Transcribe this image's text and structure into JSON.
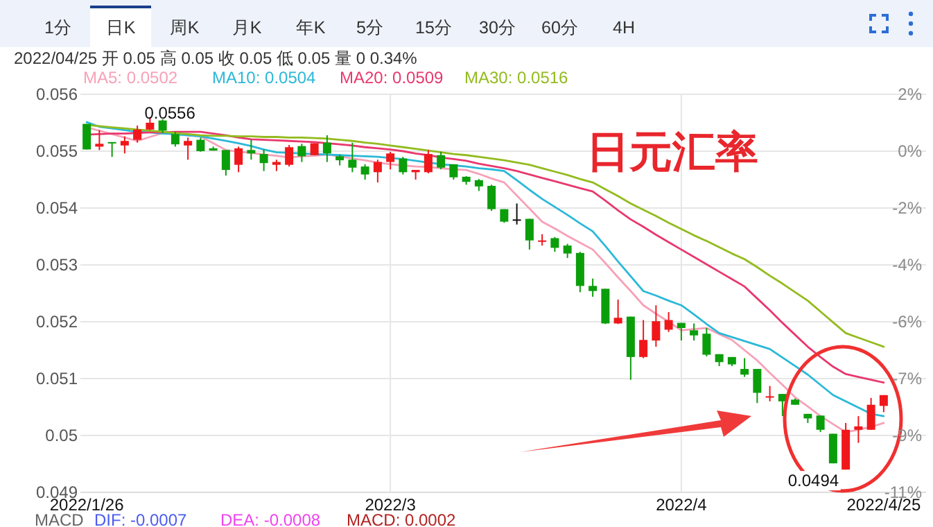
{
  "chart_data": {
    "type": "candlestick",
    "title": "日元汇率",
    "subtitle": "2022/04/25 开 0.05 高 0.05 收 0.05 低 0.05 量 0 0.34%",
    "annotations": [
      "1分",
      "日K",
      "周K",
      "月K",
      "年K",
      "5分",
      "15分",
      "30分",
      "60分",
      "4H",
      "0.0556",
      "0.0494",
      "MACD",
      "DIF: -0.0007",
      "DEA: -0.0008",
      "MACD: 0.0002"
    ],
    "categories": [
      "2022/1/26",
      null,
      null,
      null,
      null,
      null,
      null,
      null,
      null,
      null,
      null,
      null,
      null,
      null,
      null,
      null,
      null,
      null,
      null,
      null,
      null,
      null,
      null,
      null,
      "2022/3",
      null,
      null,
      null,
      null,
      null,
      null,
      null,
      null,
      null,
      null,
      null,
      null,
      null,
      null,
      null,
      null,
      null,
      null,
      null,
      null,
      null,
      null,
      "2022/4",
      null,
      null,
      null,
      null,
      null,
      null,
      null,
      null,
      null,
      null,
      null,
      null,
      null,
      null,
      null,
      "2022/4/25"
    ],
    "ohlc": [
      [
        0.05548,
        0.05548,
        0.05503,
        0.05503
      ],
      [
        0.05508,
        0.05537,
        0.05502,
        0.05513
      ],
      [
        0.05516,
        0.05516,
        0.0549,
        0.05515
      ],
      [
        0.0551,
        0.05526,
        0.05496,
        0.05518
      ],
      [
        0.0552,
        0.05545,
        0.05515,
        0.05538
      ],
      [
        0.05538,
        0.0556,
        0.05537,
        0.0555
      ],
      [
        0.05554,
        0.05556,
        0.05532,
        0.05536
      ],
      [
        0.0553,
        0.05534,
        0.05508,
        0.05512
      ],
      [
        0.0551,
        0.05524,
        0.05485,
        0.05518
      ],
      [
        0.0552,
        0.05524,
        0.05499,
        0.055
      ],
      [
        0.05505,
        0.05508,
        0.05501,
        0.05501
      ],
      [
        0.05502,
        0.05502,
        0.05457,
        0.05467
      ],
      [
        0.05476,
        0.05508,
        0.05463,
        0.05505
      ],
      [
        0.05502,
        0.0552,
        0.05485,
        0.05496
      ],
      [
        0.05495,
        0.05503,
        0.05465,
        0.05479
      ],
      [
        0.05476,
        0.05485,
        0.05465,
        0.05481
      ],
      [
        0.05476,
        0.05511,
        0.05473,
        0.05507
      ],
      [
        0.05509,
        0.05513,
        0.05481,
        0.05491
      ],
      [
        0.05493,
        0.05514,
        0.05493,
        0.05514
      ],
      [
        0.05515,
        0.05528,
        0.05481,
        0.05496
      ],
      [
        0.05491,
        0.05494,
        0.05475,
        0.05484
      ],
      [
        0.05485,
        0.05515,
        0.05463,
        0.05471
      ],
      [
        0.05473,
        0.05477,
        0.0545,
        0.05459
      ],
      [
        0.05463,
        0.05485,
        0.05445,
        0.05481
      ],
      [
        0.05481,
        0.05499,
        0.05468,
        0.05496
      ],
      [
        0.05487,
        0.0549,
        0.05459,
        0.05463
      ],
      [
        0.05463,
        0.05467,
        0.0545,
        0.05467
      ],
      [
        0.05463,
        0.05502,
        0.05461,
        0.05495
      ],
      [
        0.05493,
        0.05499,
        0.05468,
        0.05471
      ],
      [
        0.05477,
        0.05477,
        0.0545,
        0.05454
      ],
      [
        0.05455,
        0.05456,
        0.05441,
        0.05446
      ],
      [
        0.05449,
        0.05451,
        0.0543,
        0.05438
      ],
      [
        0.05439,
        0.05441,
        0.05395,
        0.05398
      ],
      [
        0.05398,
        0.05398,
        0.05374,
        0.05376
      ],
      [
        0.0538,
        0.05408,
        0.05371,
        0.0538
      ],
      [
        0.05381,
        0.05381,
        0.05327,
        0.05343
      ],
      [
        0.05342,
        0.05354,
        0.05334,
        0.05343
      ],
      [
        0.05347,
        0.05349,
        0.05323,
        0.0533
      ],
      [
        0.05334,
        0.05337,
        0.05312,
        0.0532
      ],
      [
        0.05321,
        0.05323,
        0.05252,
        0.05263
      ],
      [
        0.05263,
        0.05276,
        0.05244,
        0.05254
      ],
      [
        0.05258,
        0.05258,
        0.05196,
        0.05197
      ],
      [
        0.05197,
        0.05239,
        0.05196,
        0.05207
      ],
      [
        0.05209,
        0.05209,
        0.05098,
        0.05138
      ],
      [
        0.05138,
        0.05203,
        0.05136,
        0.05168
      ],
      [
        0.05167,
        0.05229,
        0.05156,
        0.05201
      ],
      [
        0.05186,
        0.05217,
        0.05182,
        0.05203
      ],
      [
        0.05198,
        0.05198,
        0.05167,
        0.05189
      ],
      [
        0.05185,
        0.05197,
        0.05167,
        0.05176
      ],
      [
        0.05179,
        0.05189,
        0.05139,
        0.05142
      ],
      [
        0.05143,
        0.05143,
        0.05122,
        0.05129
      ],
      [
        0.05138,
        0.05138,
        0.05122,
        0.05125
      ],
      [
        0.05117,
        0.05136,
        0.05103,
        0.05107
      ],
      [
        0.05117,
        0.05117,
        0.05057,
        0.05075
      ],
      [
        0.05068,
        0.05087,
        0.0506,
        0.05069
      ],
      [
        0.05073,
        0.05073,
        0.05034,
        0.0506
      ],
      [
        0.05063,
        0.05065,
        0.05054,
        0.05054
      ],
      [
        0.05038,
        0.05038,
        0.05022,
        0.0503
      ],
      [
        0.05035,
        0.05035,
        0.05006,
        0.0501
      ],
      [
        0.05003,
        0.05003,
        0.04951,
        0.04951
      ],
      [
        0.0494,
        0.05022,
        0.0494,
        0.0501
      ],
      [
        0.0501,
        0.05034,
        0.04987,
        0.05016
      ],
      [
        0.0501,
        0.05066,
        0.0501,
        0.05054
      ],
      [
        0.05052,
        0.05071,
        0.05041,
        0.05071
      ]
    ],
    "series": [
      {
        "name": "MA5: 0.0502",
        "color": "#f7a1b8",
        "type": "line",
        "values": [
          0.05542,
          0.05536,
          0.0553,
          0.05524,
          0.05518,
          0.05525,
          0.05532,
          0.0553,
          0.05528,
          0.05526,
          0.05514,
          0.05502,
          0.05499,
          0.05497,
          0.05494,
          0.05492,
          0.05489,
          0.05491,
          0.05492,
          0.05494,
          0.05491,
          0.05487,
          0.05484,
          0.0548,
          0.05477,
          0.05475,
          0.05473,
          0.05472,
          0.0547,
          0.05468,
          0.05467,
          0.0546,
          0.05452,
          0.05445,
          0.05422,
          0.05399,
          0.05376,
          0.05364,
          0.05351,
          0.05339,
          0.05327,
          0.05303,
          0.05278,
          0.05254,
          0.05229,
          0.05214,
          0.052,
          0.05185,
          0.05187,
          0.05189,
          0.05178,
          0.05168,
          0.0515,
          0.05132,
          0.0511,
          0.05089,
          0.05067,
          0.05051,
          0.05034,
          0.0502,
          0.05006,
          0.0501,
          0.05015,
          0.05022
        ]
      },
      {
        "name": "MA10: 0.0504",
        "color": "#2bb8d8",
        "type": "line",
        "values": [
          0.05551,
          0.05543,
          0.0554,
          0.05537,
          0.05534,
          0.05533,
          0.05531,
          0.0553,
          0.05528,
          0.05526,
          0.05522,
          0.05518,
          0.05514,
          0.05509,
          0.05503,
          0.05498,
          0.05497,
          0.05496,
          0.05495,
          0.05494,
          0.05493,
          0.05492,
          0.05491,
          0.0549,
          0.05488,
          0.05486,
          0.05483,
          0.0548,
          0.05477,
          0.05475,
          0.05473,
          0.0547,
          0.05468,
          0.05465,
          0.05449,
          0.05432,
          0.05416,
          0.05402,
          0.05388,
          0.05373,
          0.05359,
          0.05333,
          0.05306,
          0.0528,
          0.05254,
          0.05246,
          0.05237,
          0.05229,
          0.05213,
          0.05196,
          0.0518,
          0.05173,
          0.05166,
          0.05159,
          0.05152,
          0.05137,
          0.05122,
          0.05107,
          0.05089,
          0.05071,
          0.0506,
          0.05049,
          0.05038,
          0.05034
        ]
      },
      {
        "name": "MA20: 0.0509",
        "color": "#e8386e",
        "type": "line",
        "values": [
          0.05529,
          0.0553,
          0.05531,
          0.05531,
          0.05532,
          0.05533,
          0.05533,
          0.05534,
          0.05534,
          0.05534,
          0.05531,
          0.05528,
          0.05524,
          0.05521,
          0.0552,
          0.05519,
          0.05518,
          0.05517,
          0.05516,
          0.05514,
          0.05512,
          0.0551,
          0.05507,
          0.05505,
          0.05503,
          0.055,
          0.05496,
          0.05493,
          0.05489,
          0.05486,
          0.05483,
          0.05478,
          0.05474,
          0.0547,
          0.05465,
          0.05459,
          0.05453,
          0.05447,
          0.05441,
          0.05435,
          0.05429,
          0.05413,
          0.05396,
          0.0538,
          0.05367,
          0.05353,
          0.0534,
          0.05327,
          0.05314,
          0.05301,
          0.05288,
          0.05275,
          0.05262,
          0.05241,
          0.0522,
          0.05198,
          0.05177,
          0.05156,
          0.05138,
          0.05121,
          0.05108,
          0.05103,
          0.05098,
          0.05093
        ]
      },
      {
        "name": "MA30: 0.0516",
        "color": "#93bb1e",
        "type": "line",
        "values": [
          0.05546,
          0.05544,
          0.05542,
          0.0554,
          0.05538,
          0.05536,
          0.05534,
          0.05532,
          0.0553,
          0.05528,
          0.05527,
          0.05527,
          0.05526,
          0.05526,
          0.05525,
          0.05525,
          0.05524,
          0.05524,
          0.05523,
          0.05522,
          0.0552,
          0.05518,
          0.05515,
          0.05513,
          0.0551,
          0.05507,
          0.05504,
          0.05501,
          0.05498,
          0.05495,
          0.05493,
          0.0549,
          0.05487,
          0.05484,
          0.0548,
          0.05476,
          0.0547,
          0.05464,
          0.05458,
          0.05451,
          0.05445,
          0.05433,
          0.05421,
          0.05408,
          0.05397,
          0.05386,
          0.05374,
          0.05363,
          0.05352,
          0.05342,
          0.05331,
          0.0532,
          0.0531,
          0.05296,
          0.05281,
          0.05267,
          0.05252,
          0.05237,
          0.05218,
          0.05199,
          0.0518,
          0.05172,
          0.05164,
          0.05156
        ]
      }
    ],
    "ylim": [
      0.049,
      0.056
    ],
    "yticks": [
      0.049,
      0.05,
      0.051,
      0.052,
      0.053,
      0.054,
      0.055,
      0.056
    ],
    "y2lim": [
      -11.03,
      1.65
    ],
    "y2ticks": [
      {
        "value": -11.03,
        "label": "-11%"
      },
      {
        "value": -9.22,
        "label": "-9%"
      },
      {
        "value": -7.41,
        "label": "-7%"
      },
      {
        "value": -5.59,
        "label": "-6%"
      },
      {
        "value": -3.78,
        "label": "-4%"
      },
      {
        "value": -1.97,
        "label": "-2%"
      },
      {
        "value": -0.16,
        "label": "0%"
      },
      {
        "value": 1.65,
        "label": "2%"
      }
    ],
    "grid": true,
    "legend": "top",
    "marker": "none",
    "line_style": "solid"
  }
}
